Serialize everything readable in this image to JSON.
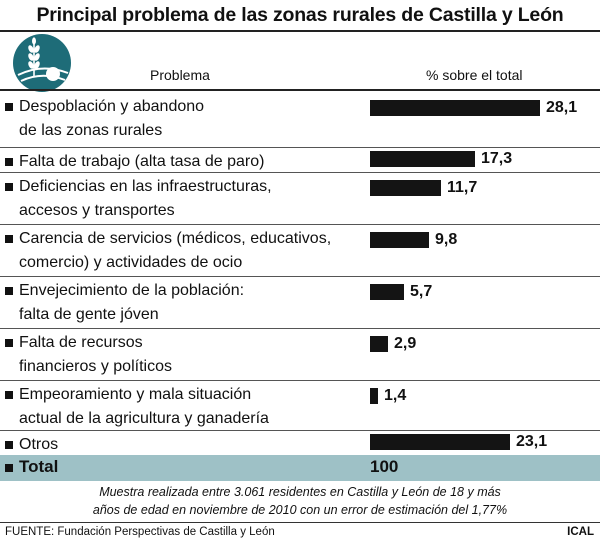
{
  "title": "Principal problema de las zonas rurales de Castilla y León",
  "header": {
    "problem": "Problema",
    "percent": "% sobre el total"
  },
  "logo_icon": "wheat-sun-field-logo",
  "colors": {
    "bar": "#141414",
    "total_band": "#9ec1c6",
    "logo": "#1e6c78"
  },
  "chart_data": {
    "type": "bar",
    "orientation": "horizontal",
    "categories": [
      "Despoblación y abandono\nde las zonas rurales",
      "Falta de trabajo (alta tasa de paro)",
      "Deficiencias en las infraestructuras,\naccesos y transportes",
      "Carencia de servicios (médicos, educativos,\ncomercio) y actividades de ocio",
      "Envejecimiento de la población:\nfalta de gente jóven",
      "Falta de recursos\nfinancieros y políticos",
      "Empeoramiento y mala situación\nactual de la agricultura y ganadería",
      "Otros"
    ],
    "values": [
      28.1,
      17.3,
      11.7,
      9.8,
      5.7,
      2.9,
      1.4,
      23.1
    ],
    "value_labels": [
      "28,1",
      "17,3",
      "11,7",
      "9,8",
      "5,7",
      "2,9",
      "1,4",
      "23,1"
    ],
    "xlabel": "% sobre el total",
    "ylabel": "Problema",
    "total": {
      "label": "Total",
      "value": "100"
    }
  },
  "note": "Muestra realizada entre 3.061 residentes en Castilla y León de 18 y más\naños de edad en noviembre de 2010 con un error de estimación del 1,77%",
  "source": "FUENTE: Fundación Perspectivas de Castilla y León",
  "credit": "ICAL"
}
